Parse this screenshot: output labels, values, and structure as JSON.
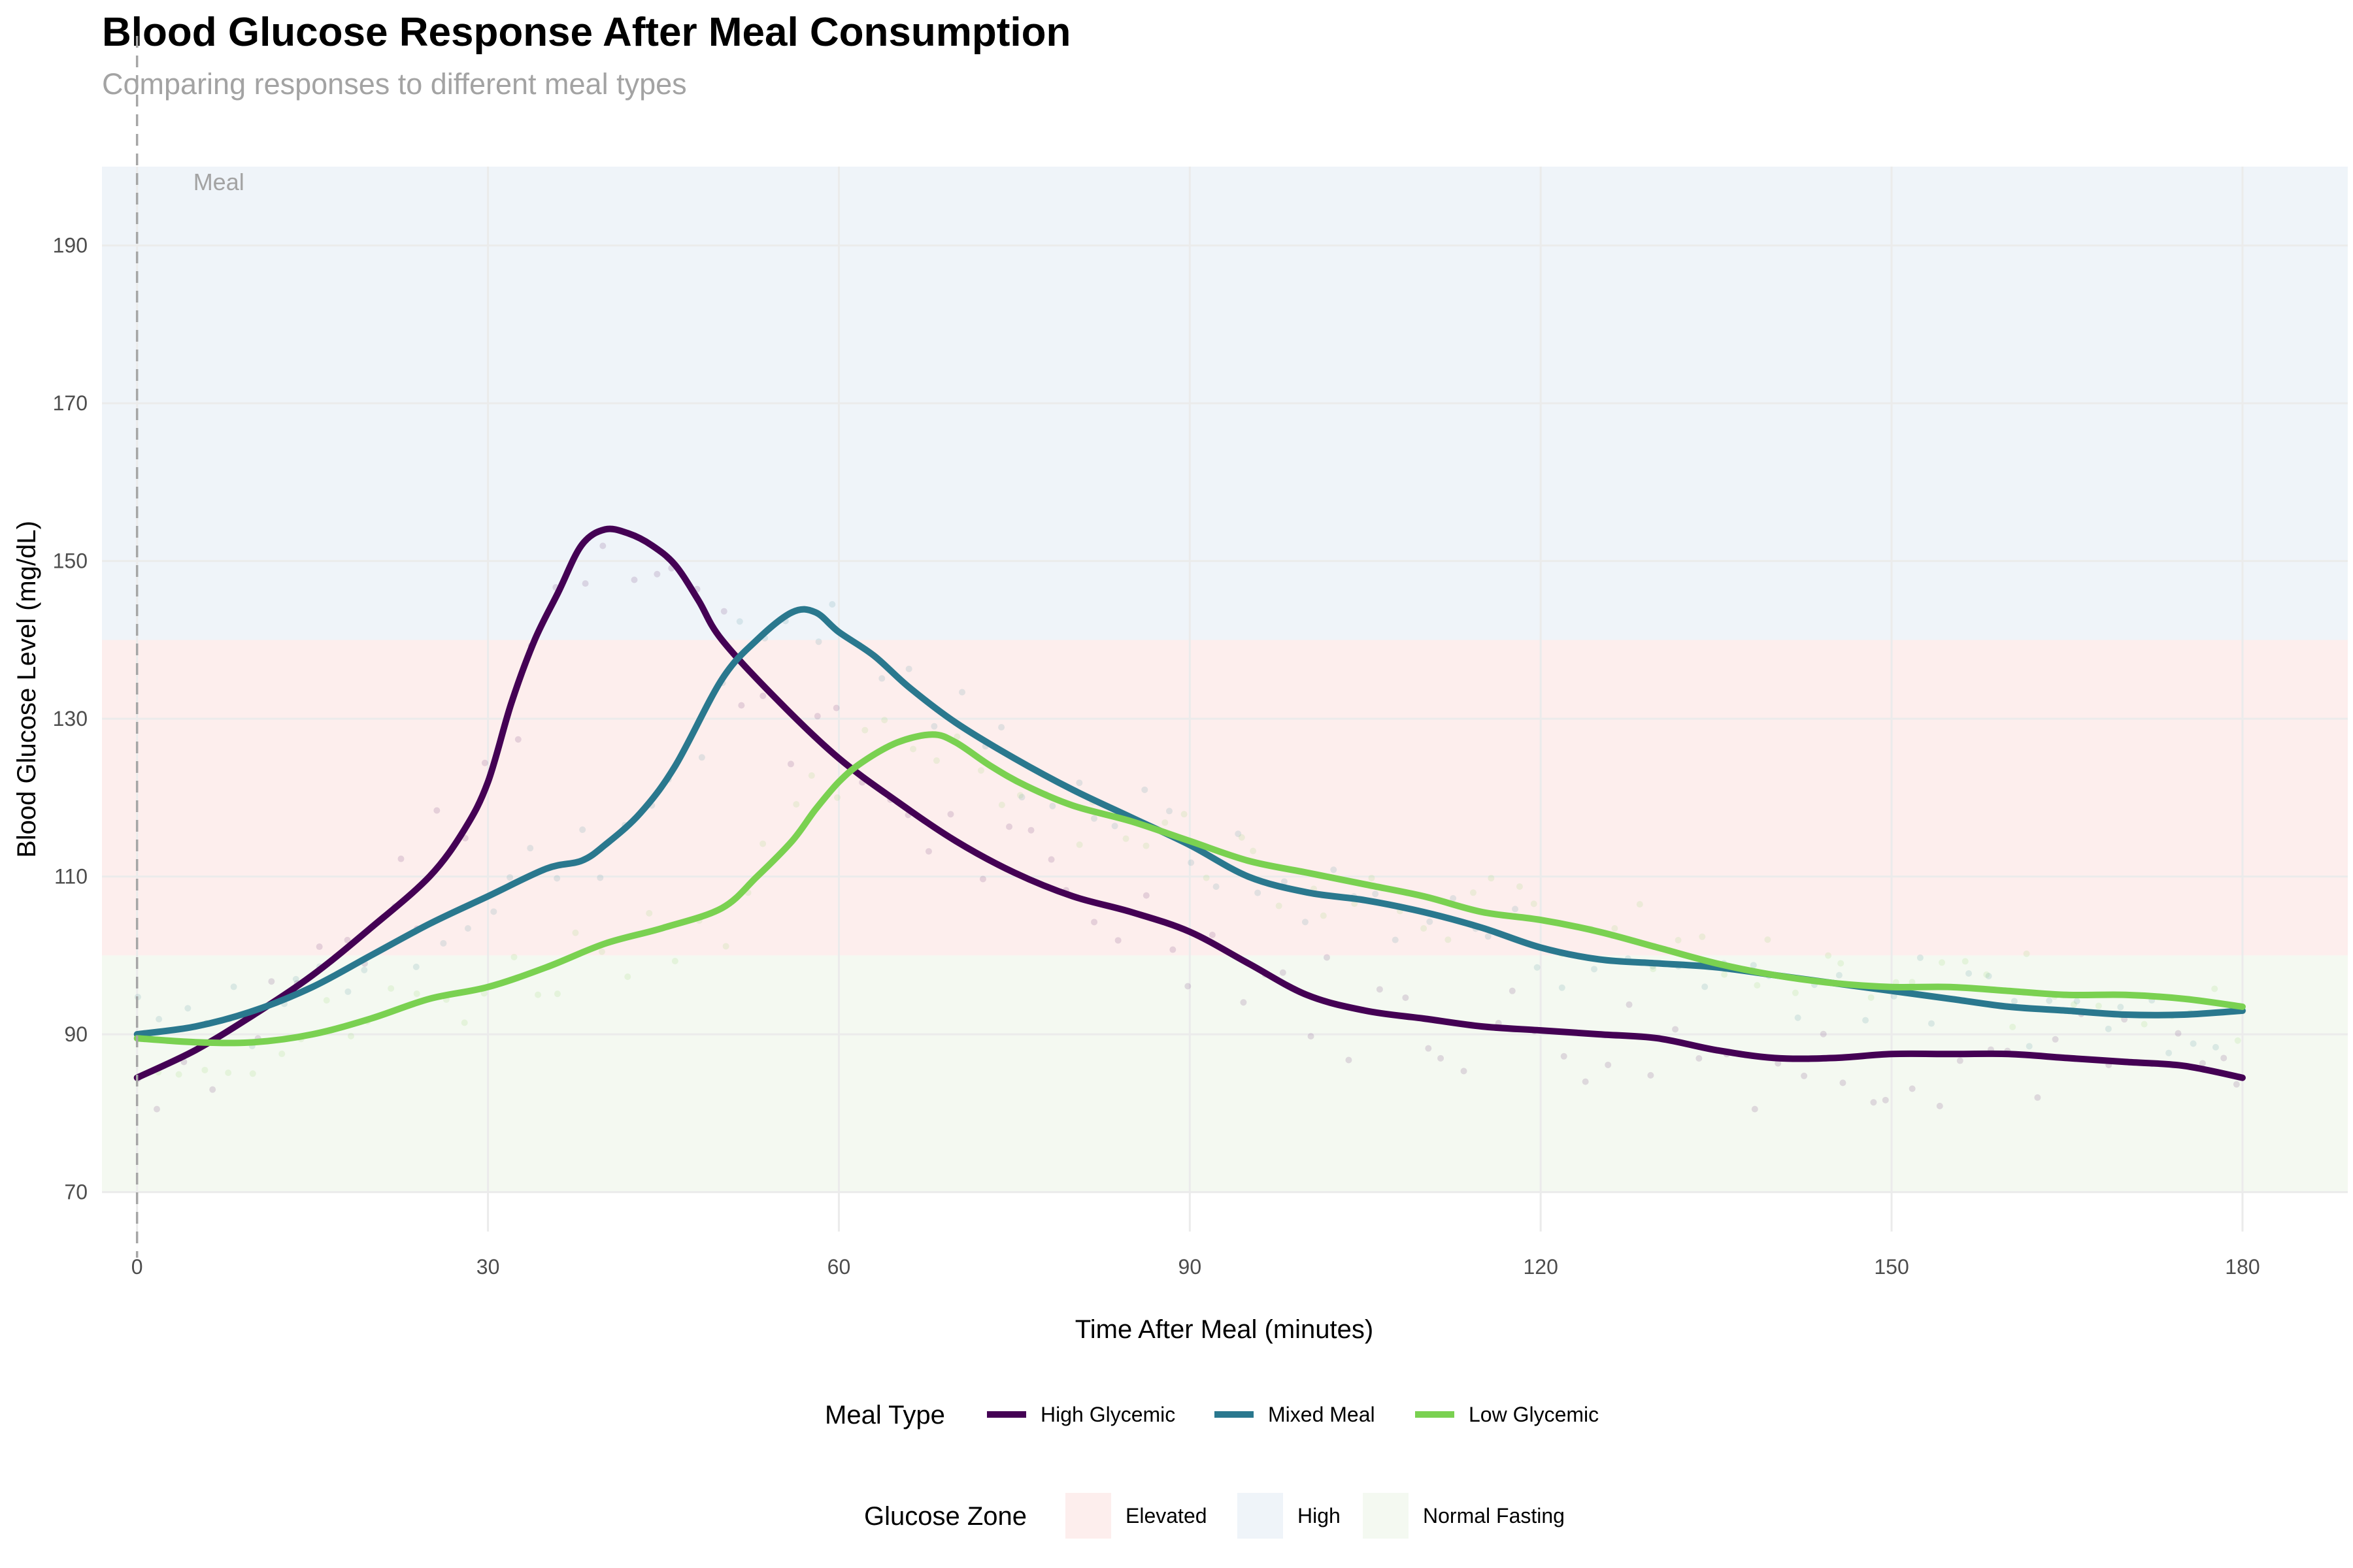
{
  "chart_data": {
    "type": "line",
    "title": "Blood Glucose Response After Meal Consumption",
    "subtitle": "Comparing responses to different meal types",
    "xlabel": "Time After Meal (minutes)",
    "ylabel": "Blood Glucose Level (mg/dL)",
    "xlim": [
      -3,
      189
    ],
    "ylim": [
      65,
      200
    ],
    "x_ticks": [
      0,
      30,
      60,
      90,
      120,
      150,
      180
    ],
    "y_ticks": [
      70,
      90,
      110,
      130,
      150,
      170,
      190
    ],
    "grid": true,
    "legend_position": "bottom",
    "annotation": {
      "label": "Meal",
      "x": 0
    },
    "zones": {
      "title": "Glucose Zone",
      "items": [
        {
          "name": "Elevated",
          "y_range": [
            100,
            140
          ],
          "color": "#fdeeed"
        },
        {
          "name": "High",
          "y_range": [
            140,
            200
          ],
          "color": "#eff4f9"
        },
        {
          "name": "Normal Fasting",
          "y_range": [
            70,
            100
          ],
          "color": "#f4f9f1"
        }
      ]
    },
    "legend_title": "Meal Type",
    "series": [
      {
        "name": "High Glycemic",
        "color": "#440154",
        "x": [
          0,
          5,
          10,
          15,
          20,
          25,
          28,
          30,
          32,
          34,
          36,
          38,
          40,
          42,
          44,
          46,
          48,
          50,
          55,
          60,
          65,
          70,
          75,
          80,
          85,
          90,
          95,
          100,
          105,
          110,
          115,
          120,
          125,
          130,
          135,
          140,
          145,
          150,
          155,
          160,
          165,
          170,
          175,
          180
        ],
        "y": [
          84.5,
          88,
          92.5,
          97.5,
          103.5,
          110,
          116,
          122,
          132,
          140,
          146,
          152,
          154,
          153.5,
          152,
          149.5,
          145,
          140,
          132,
          125,
          119.5,
          114.5,
          110.5,
          107.5,
          105.5,
          103,
          99,
          95,
          93,
          92,
          91,
          90.5,
          90,
          89.5,
          88,
          87,
          87,
          87.5,
          87.5,
          87.5,
          87,
          86.5,
          86,
          84.5
        ]
      },
      {
        "name": "Mixed Meal",
        "color": "#2a788e",
        "x": [
          0,
          5,
          10,
          15,
          20,
          25,
          30,
          35,
          38,
          40,
          43,
          46,
          50,
          53,
          56,
          58,
          60,
          63,
          66,
          70,
          75,
          80,
          85,
          90,
          95,
          100,
          105,
          110,
          115,
          120,
          125,
          130,
          135,
          140,
          145,
          150,
          155,
          160,
          165,
          170,
          175,
          180
        ],
        "y": [
          90,
          91,
          93,
          96,
          100,
          104,
          107.5,
          111,
          112,
          114,
          118,
          124,
          135,
          140,
          143.5,
          143.5,
          141,
          138,
          134,
          129.5,
          125,
          121,
          117.5,
          114,
          110,
          108,
          107,
          105.5,
          103.5,
          101,
          99.5,
          99,
          98.5,
          97.5,
          96.5,
          95.5,
          94.5,
          93.5,
          93,
          92.5,
          92.5,
          93
        ]
      },
      {
        "name": "Low Glycemic",
        "color": "#7ad151",
        "x": [
          0,
          5,
          10,
          15,
          20,
          25,
          30,
          35,
          40,
          45,
          50,
          53,
          56,
          58,
          60,
          62,
          65,
          68,
          70,
          73,
          76,
          80,
          85,
          90,
          95,
          100,
          105,
          110,
          115,
          120,
          125,
          130,
          135,
          140,
          145,
          150,
          155,
          160,
          165,
          170,
          175,
          180
        ],
        "y": [
          89.5,
          89,
          89,
          90,
          92,
          94.5,
          96,
          98.5,
          101.5,
          103.5,
          106,
          110,
          114.5,
          118.5,
          122,
          124.5,
          127,
          128,
          127,
          124,
          121.5,
          119,
          117,
          114.5,
          112,
          110.5,
          109,
          107.5,
          105.5,
          104.5,
          103,
          101,
          99,
          97.5,
          96.5,
          96,
          96,
          95.5,
          95,
          95,
          94.5,
          93.5
        ]
      }
    ]
  }
}
